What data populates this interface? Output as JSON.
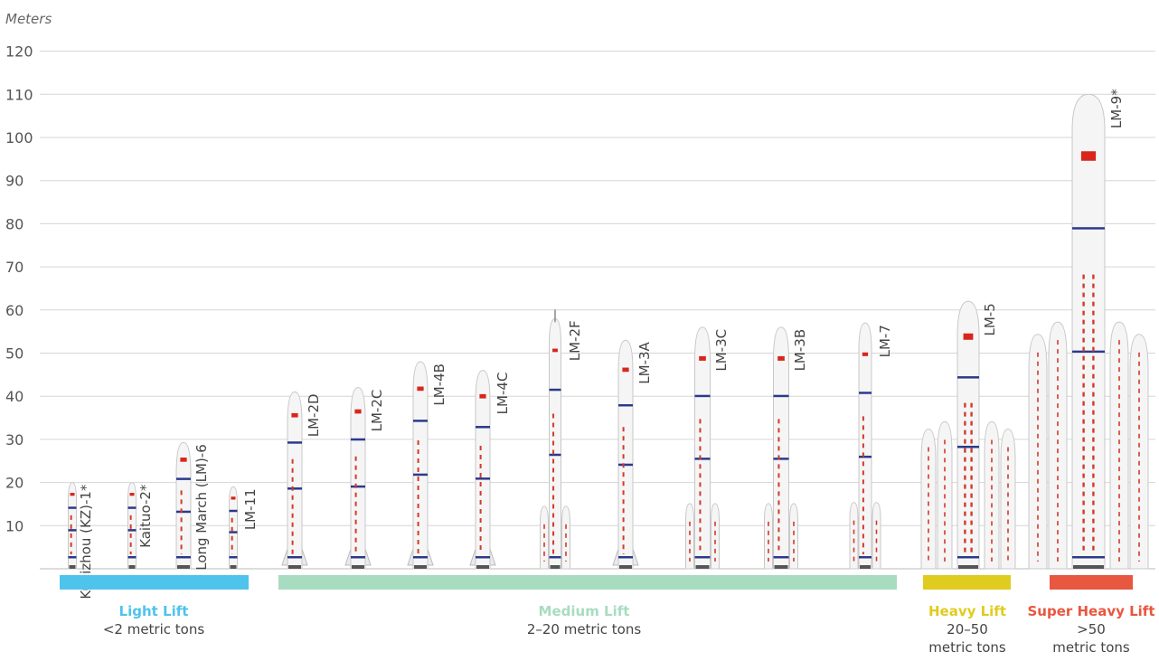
{
  "chart_data": {
    "type": "bar",
    "ylabel": "Meters",
    "ylim": [
      0,
      120
    ],
    "yticks": [
      10,
      20,
      30,
      40,
      50,
      60,
      70,
      80,
      90,
      100,
      110,
      120
    ],
    "grid": true,
    "rockets": [
      {
        "name": "Kuaizhou (KZ)-1*",
        "height": 20,
        "category": 0
      },
      {
        "name": "Kaituo-2*",
        "height": 20,
        "category": 0
      },
      {
        "name": "Long March (LM)-6",
        "height": 29.3,
        "category": 0
      },
      {
        "name": "LM-11",
        "height": 19,
        "category": 0
      },
      {
        "name": "LM-2D",
        "height": 41,
        "category": 1
      },
      {
        "name": "LM-2C",
        "height": 42,
        "category": 1
      },
      {
        "name": "LM-4B",
        "height": 48,
        "category": 1
      },
      {
        "name": "LM-4C",
        "height": 46,
        "category": 1
      },
      {
        "name": "LM-2F",
        "height": 58,
        "category": 1
      },
      {
        "name": "LM-3A",
        "height": 53,
        "category": 1
      },
      {
        "name": "LM-3C",
        "height": 56,
        "category": 1
      },
      {
        "name": "LM-3B",
        "height": 56,
        "category": 1
      },
      {
        "name": "LM-7",
        "height": 57,
        "category": 1
      },
      {
        "name": "LM-5",
        "height": 62,
        "category": 2
      },
      {
        "name": "LM-9*",
        "height": 110,
        "category": 3
      }
    ],
    "categories": [
      {
        "title": "Light Lift",
        "subtitle": [
          "<2 metric tons"
        ],
        "color": "#4ec3ec"
      },
      {
        "title": "Medium Lift",
        "subtitle": [
          "2–20 metric tons"
        ],
        "color": "#a8dcc0"
      },
      {
        "title": "Heavy Lift",
        "subtitle": [
          "20–50",
          "metric tons"
        ],
        "color": "#e0cc1e"
      },
      {
        "title": "Super Heavy Lift",
        "subtitle": [
          ">50",
          "metric tons"
        ],
        "color": "#e8573f"
      }
    ]
  }
}
